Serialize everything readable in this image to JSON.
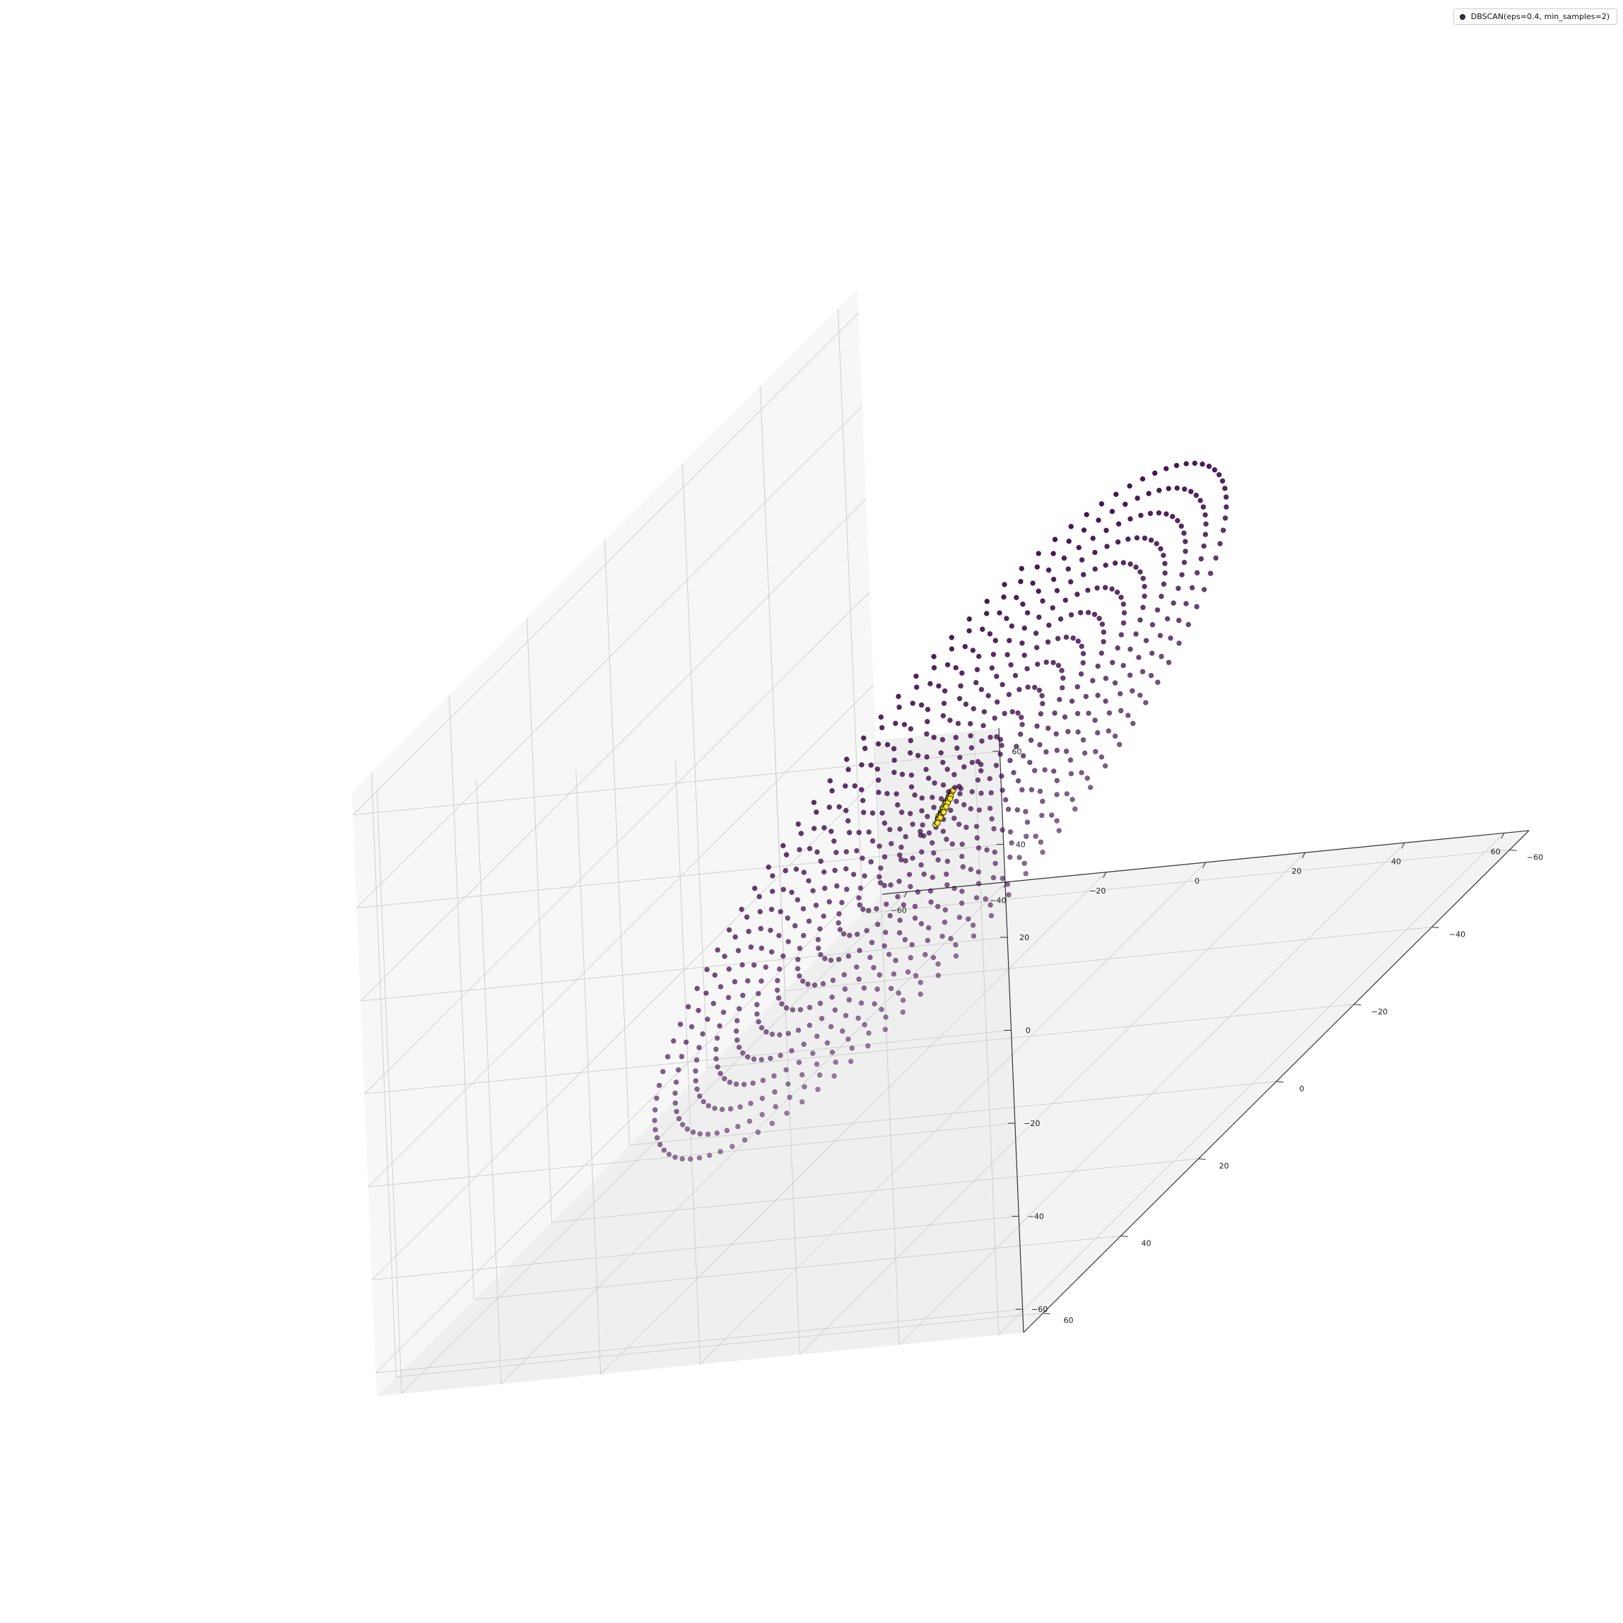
{
  "legend": {
    "label": "DBSCAN(eps=0.4, min_samples=2)"
  },
  "chart_data": {
    "type": "scatter",
    "projection": "3d",
    "title": "",
    "xlabel": "",
    "ylabel": "",
    "zlabel": "",
    "xlim": [
      -65,
      65
    ],
    "ylim": [
      -65,
      65
    ],
    "zlim": [
      -65,
      65
    ],
    "x_ticks": [
      "−60",
      "−40",
      "−20",
      "0",
      "20",
      "40",
      "60"
    ],
    "y_ticks": [
      "−60",
      "−40",
      "−20",
      "0",
      "20",
      "40",
      "60"
    ],
    "z_ticks": [
      "−60",
      "−40",
      "−20",
      "0",
      "20",
      "40",
      "60"
    ],
    "grid": true,
    "legend_placement": "top-right",
    "colormap": "viridis",
    "series": [
      {
        "name": "DBSCAN(eps=0.4, min_samples=2)",
        "description_of_points": "points lie on a tilted disc (spiral rings) centred at the origin; a dense yellow core cluster at the centre, remaining points dark purple fading with depth",
        "radial_extent": [
          0,
          60
        ],
        "core_radius": 3,
        "colors": {
          "noise": "#440154",
          "core": "#fde725",
          "edge": "#111111"
        }
      }
    ]
  }
}
